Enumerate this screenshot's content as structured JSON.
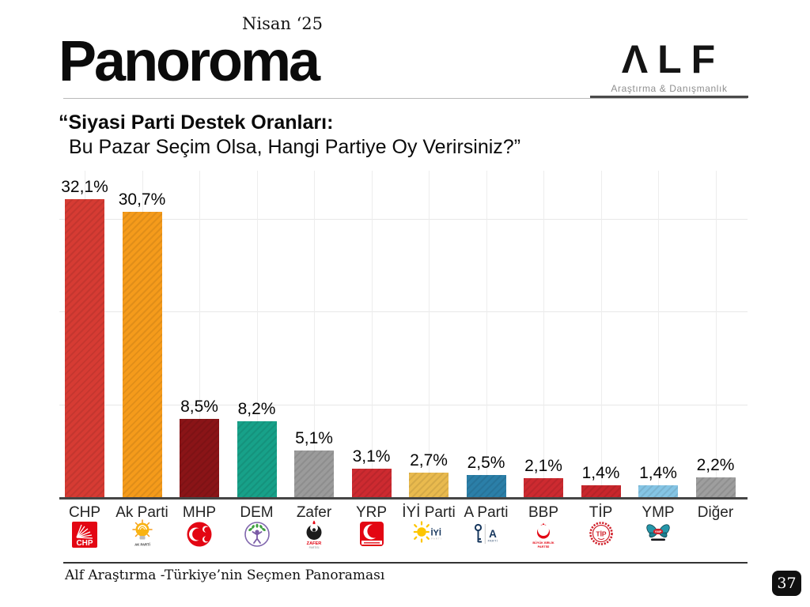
{
  "header": {
    "edition": "Nisan ‘25",
    "brand": "Panoroma",
    "agency": {
      "name": "ALF",
      "display": "ΛLF",
      "tagline": "Araştırma & Danışmanlık"
    }
  },
  "title": {
    "line1": "“Siyasi Parti Destek Oranları:",
    "line2": "Bu Pazar Seçim Olsa, Hangi Partiye Oy Verirsiniz?”"
  },
  "chart_data": {
    "type": "bar",
    "title": "Siyasi Parti Destek Oranları: Bu Pazar Seçim Olsa, Hangi Partiye Oy Verirsiniz?",
    "categories": [
      "CHP",
      "Ak Parti",
      "MHP",
      "DEM",
      "Zafer",
      "YRP",
      "İYİ Parti",
      "A Parti",
      "BBP",
      "TİP",
      "YMP",
      "Diğer"
    ],
    "values": [
      32.1,
      30.7,
      8.5,
      8.2,
      5.1,
      3.1,
      2.7,
      2.5,
      2.1,
      1.4,
      1.4,
      2.2
    ],
    "value_labels": [
      "32,1%",
      "30,7%",
      "8,5%",
      "8,2%",
      "5,1%",
      "3,1%",
      "2,7%",
      "2,5%",
      "2,1%",
      "1,4%",
      "1,4%",
      "2,2%"
    ],
    "bar_colors": [
      "#d63b33",
      "#f59b1b",
      "#8a1417",
      "#17a189",
      "#9b9b9b",
      "#cd2a30",
      "#e9ba4e",
      "#2b7fa8",
      "#cd2a30",
      "#c8262c",
      "#85c5e5",
      "#9e9e9e"
    ],
    "unit": "%",
    "ylim": [
      0,
      35
    ],
    "y_gridlines_pct": [
      10,
      20,
      30
    ],
    "grid": "light horizontal lines every 10% and vertical line at each category center",
    "legend": "none",
    "xlabel": "",
    "ylabel": ""
  },
  "parties": [
    {
      "id": "chp",
      "name": "CHP",
      "icon": "chp-logo-icon",
      "logo_text": "CHP",
      "logo_subtext": ""
    },
    {
      "id": "akparti",
      "name": "Ak Parti",
      "icon": "akparti-logo-icon",
      "logo_text": "AK PARTİ",
      "logo_subtext": ""
    },
    {
      "id": "mhp",
      "name": "MHP",
      "icon": "mhp-logo-icon",
      "logo_text": "",
      "logo_subtext": ""
    },
    {
      "id": "dem",
      "name": "DEM",
      "icon": "dem-logo-icon",
      "logo_text": "",
      "logo_subtext": ""
    },
    {
      "id": "zafer",
      "name": "Zafer",
      "icon": "zafer-logo-icon",
      "logo_text": "ZAFER",
      "logo_subtext": "PARTİSİ"
    },
    {
      "id": "yrp",
      "name": "YRP",
      "icon": "yrp-logo-icon",
      "logo_text": "",
      "logo_subtext": ""
    },
    {
      "id": "iyi",
      "name": "İYİ Parti",
      "icon": "iyi-logo-icon",
      "logo_text": "İYİ",
      "logo_subtext": "PARTİ"
    },
    {
      "id": "aparti",
      "name": "A Parti",
      "icon": "aparti-logo-icon",
      "logo_text": "A",
      "logo_subtext": "PARTİ"
    },
    {
      "id": "bbp",
      "name": "BBP",
      "icon": "bbp-logo-icon",
      "logo_text": "BÜYÜK BİRLİK",
      "logo_subtext": "PARTİSİ"
    },
    {
      "id": "tip",
      "name": "TİP",
      "icon": "tip-logo-icon",
      "logo_text": "TİP",
      "logo_subtext": ""
    },
    {
      "id": "ymp",
      "name": "YMP",
      "icon": "ymp-logo-icon",
      "logo_text": "YMP",
      "logo_subtext": ""
    },
    {
      "id": "diger",
      "name": "Diğer",
      "icon": null,
      "logo_text": "",
      "logo_subtext": ""
    }
  ],
  "footer": {
    "source": "Alf Araştırma -Türkiye’nin Seçmen Panoraması",
    "page": "37"
  }
}
